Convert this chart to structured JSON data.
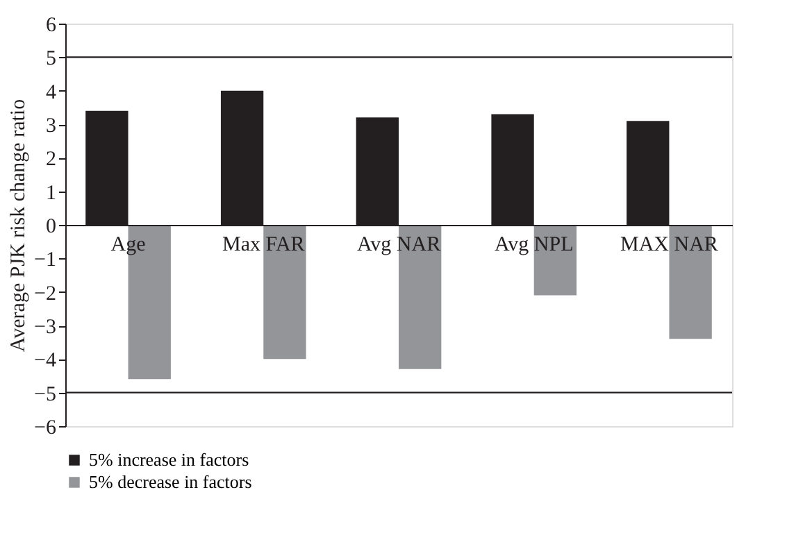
{
  "chart_data": {
    "type": "bar",
    "ylabel": "Average PJK risk change ratio",
    "categories": [
      "Age",
      "Max FAR",
      "Avg NAR",
      "Avg NPL",
      "MAX NAR"
    ],
    "series": [
      {
        "name": "5% increase in factors",
        "color": "#231f20",
        "values": [
          3.4,
          4.0,
          3.2,
          3.3,
          3.1
        ]
      },
      {
        "name": "5% decrease in factors",
        "color": "#939598",
        "values": [
          -4.6,
          -4.0,
          -4.3,
          -2.1,
          -3.4
        ]
      }
    ],
    "ylim": [
      -6,
      6
    ],
    "yticks": [
      -6,
      -5,
      -4,
      -3,
      -2,
      -1,
      0,
      1,
      2,
      3,
      4,
      5,
      6
    ],
    "ref_lines": [
      {
        "axis": "y",
        "value": 5,
        "color": "#231f20"
      },
      {
        "axis": "y",
        "value": -5,
        "color": "#231f20"
      }
    ],
    "grid": false,
    "legend": "bottom left"
  }
}
